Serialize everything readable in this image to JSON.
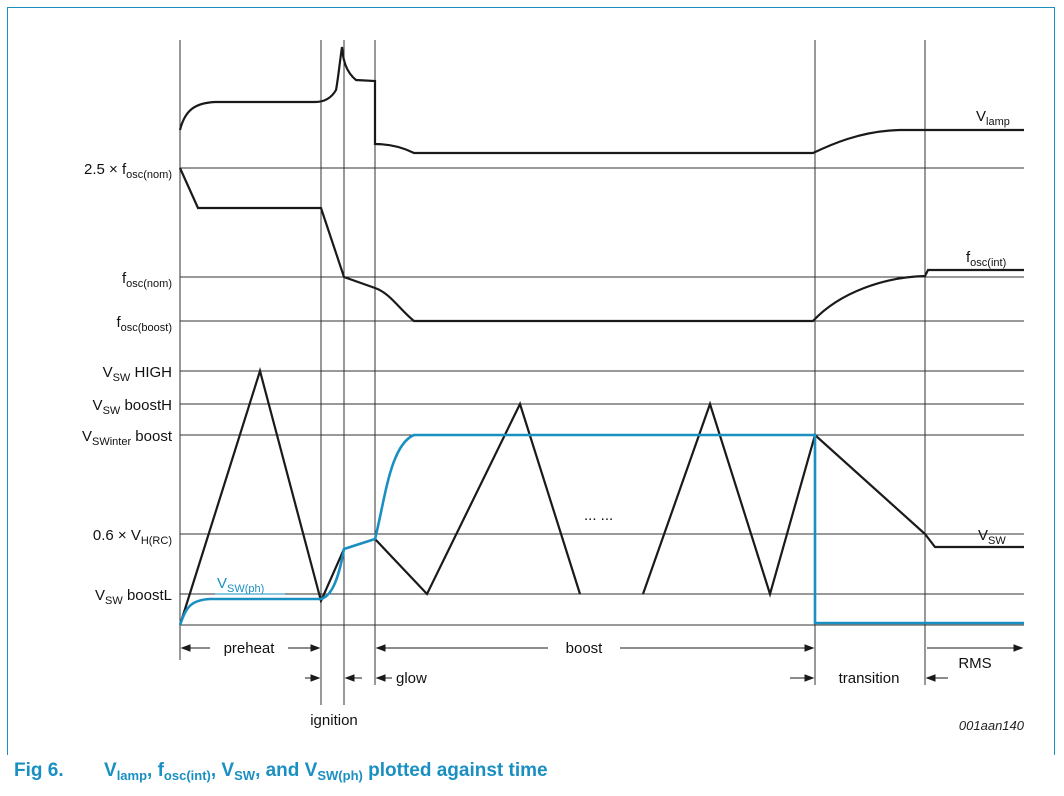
{
  "levels": {
    "l2_5": "2.5 × f",
    "l2_5_sub": "osc(nom)",
    "fnom": "f",
    "fnom_sub": "osc(nom)",
    "fboost": "f",
    "fboost_sub": "osc(boost)",
    "vswhigh": "V",
    "vswhigh_sub": "SW",
    "vswhigh_suffix": " HIGH",
    "vswboosth": "V",
    "vswboosth_sub": "SW",
    "vswboosth_suffix": " boostH",
    "vswinter": "V",
    "vswinter_sub": "SWinter",
    "vswinter_suffix": " boost",
    "vhrc": "0.6 × V",
    "vhrc_sub": "H(RC)",
    "vswboostl": "V",
    "vswboostl_sub": "SW",
    "vswboostl_suffix": " boostL"
  },
  "curves": {
    "vlamp": "V",
    "vlamp_sub": "lamp",
    "fosc": "f",
    "fosc_sub": "osc(int)",
    "vsw": "V",
    "vsw_sub": "SW",
    "vswph": "V",
    "vswph_sub": "SW(ph)"
  },
  "phases": {
    "preheat": "preheat",
    "ignition": "ignition",
    "glow": "glow",
    "boost": "boost",
    "transition": "transition",
    "rms": "RMS"
  },
  "dots": "... ...",
  "ref_code": "001aan140",
  "caption": {
    "fig": "Fig 6.",
    "p1": "V",
    "p1_sub": "lamp",
    "sep1": ", f",
    "p2_sub": "osc(int)",
    "sep2": ", V",
    "p3_sub": "SW",
    "sep3": ", and V",
    "p4_sub": "SW(ph)",
    "tail": " plotted against time"
  },
  "colors": {
    "black": "#1a1a1a",
    "blue": "#1a8fc2",
    "grid": "#333333"
  }
}
